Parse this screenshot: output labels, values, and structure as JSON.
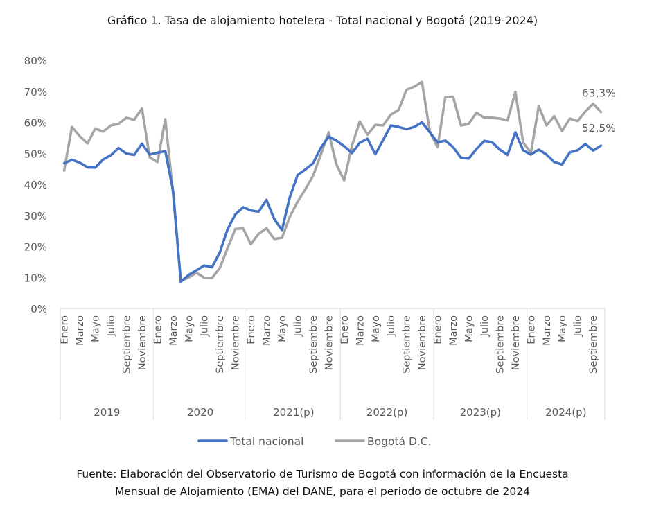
{
  "title": "Gráfico 1. Tasa de alojamiento hotelera - Total nacional y Bogotá (2019-2024)",
  "source_line1": "Fuente: Elaboración del Observatorio de Turismo de Bogotá con información de la Encuesta",
  "source_line2": "Mensual de Alojamiento (EMA) del DANE, para el periodo de octubre de 2024",
  "chart_data": {
    "type": "line",
    "title": "Gráfico 1. Tasa de alojamiento hotelera - Total nacional y Bogotá (2019-2024)",
    "xlabel": "",
    "ylabel": "",
    "ylim": [
      0,
      80
    ],
    "yticks": [
      0,
      10,
      20,
      30,
      40,
      50,
      60,
      70,
      80
    ],
    "ytick_labels": [
      "0%",
      "10%",
      "20%",
      "30%",
      "40%",
      "50%",
      "60%",
      "70%",
      "80%"
    ],
    "grid": false,
    "legend_position": "bottom",
    "years": [
      "2019",
      "2020",
      "2021(p)",
      "2022(p)",
      "2023(p)",
      "2024(p)"
    ],
    "year_month_counts": [
      12,
      12,
      12,
      12,
      12,
      10
    ],
    "month_tick_labels": [
      "Enero",
      "Marzo",
      "Mayo",
      "Julio",
      "Septiembre",
      "Noviembre"
    ],
    "series": [
      {
        "name": "Total nacional",
        "color": "#4472C4",
        "values": [
          46.8,
          47.9,
          47.0,
          45.5,
          45.4,
          48.0,
          49.4,
          51.7,
          49.9,
          49.5,
          53.1,
          49.6,
          50.2,
          50.7,
          38.0,
          8.6,
          10.8,
          12.3,
          13.8,
          13.3,
          18.0,
          25.5,
          30.3,
          32.6,
          31.6,
          31.2,
          35.0,
          28.8,
          25.3,
          35.8,
          43.0,
          44.8,
          46.8,
          51.8,
          55.4,
          54.1,
          52.3,
          50.1,
          53.4,
          54.7,
          49.7,
          54.3,
          59.0,
          58.5,
          57.8,
          58.5,
          60.0,
          56.8,
          53.5,
          54.1,
          52.0,
          48.6,
          48.3,
          51.4,
          54.0,
          53.6,
          51.2,
          49.5,
          56.8,
          51.0,
          49.6,
          51.2,
          49.6,
          47.2,
          46.4,
          50.3,
          51.0,
          53.0,
          50.9,
          52.5
        ]
      },
      {
        "name": "Bogotá D.C.",
        "color": "#A5A5A5",
        "values": [
          44.5,
          58.5,
          55.5,
          53.2,
          58.0,
          57.0,
          59.0,
          59.5,
          61.5,
          60.8,
          64.5,
          48.7,
          47.2,
          61.0,
          37.0,
          8.8,
          10.0,
          11.5,
          9.9,
          9.8,
          13.0,
          19.4,
          25.6,
          25.8,
          20.7,
          24.1,
          25.8,
          22.4,
          22.8,
          29.5,
          34.4,
          38.4,
          42.8,
          49.6,
          56.8,
          46.4,
          41.3,
          52.5,
          60.3,
          56.0,
          59.2,
          59.0,
          62.5,
          64.0,
          70.5,
          71.5,
          73.0,
          57.0,
          52.0,
          68.1,
          68.3,
          59.0,
          59.5,
          63.1,
          61.5,
          61.5,
          61.2,
          60.6,
          69.8,
          53.5,
          50.2,
          65.3,
          59.0,
          62.0,
          57.2,
          61.2,
          60.4,
          63.5,
          66.0,
          63.3
        ]
      }
    ],
    "annotations": [
      {
        "series": "Bogotá D.C.",
        "label": "63,3%"
      },
      {
        "series": "Total nacional",
        "label": "52,5%"
      }
    ]
  }
}
